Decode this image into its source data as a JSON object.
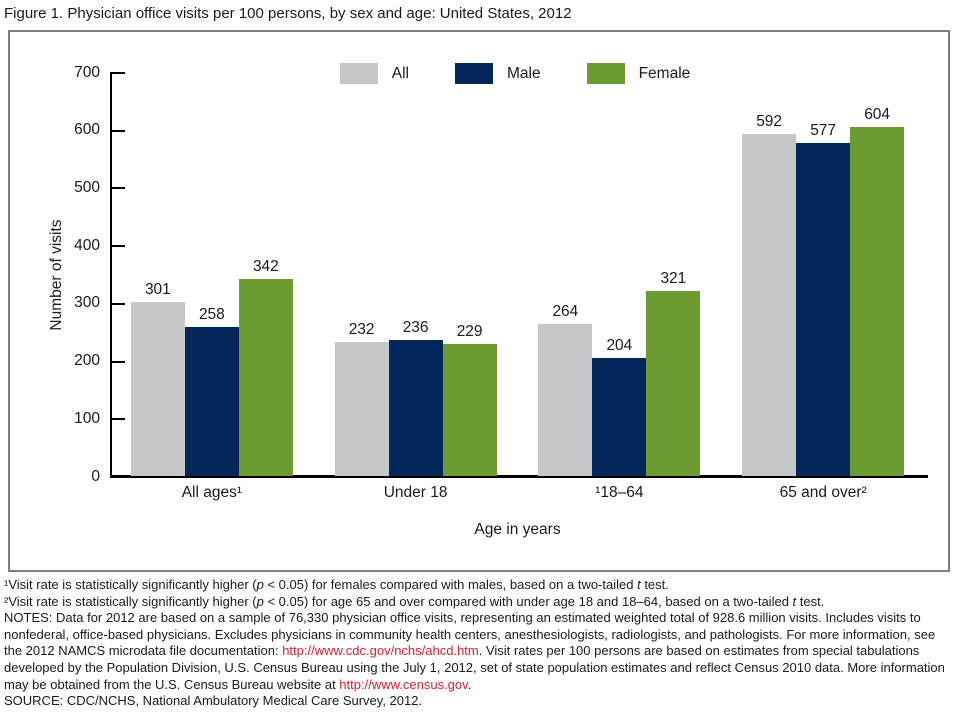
{
  "title": "Figure 1. Physician office visits per 100 persons, by sex and age: United States, 2012",
  "colors": {
    "all_bar": "#C6C7C9",
    "male_bar": "#03275A",
    "female_bar": "#6C9B31",
    "link": "#DD1E33",
    "axis": "#000000"
  },
  "chart_data": {
    "type": "bar",
    "title": "Physician office visits per 100 persons, by sex and age: United States, 2012",
    "categories": [
      "All ages¹",
      "Under 18",
      "¹18–64",
      "65 and over²"
    ],
    "series": [
      {
        "name": "All",
        "color": "#C6C7C9",
        "values": [
          301,
          232,
          264,
          592
        ]
      },
      {
        "name": "Male",
        "color": "#03275A",
        "values": [
          258,
          236,
          204,
          577
        ]
      },
      {
        "name": "Female",
        "color": "#6C9B31",
        "values": [
          342,
          229,
          321,
          604
        ]
      }
    ],
    "xlabel": "Age in years",
    "ylabel": "Number of visits",
    "ylim": [
      0,
      700
    ],
    "yticks": [
      0,
      100,
      200,
      300,
      400,
      500,
      600,
      700
    ],
    "grid": false,
    "legend_position": "top-center",
    "bar_value_labels": true
  },
  "footnotes": {
    "lines": [
      {
        "name": "footnote-1",
        "segments": [
          {
            "text": "¹Visit rate is statistically significantly higher ("
          },
          {
            "text": "p",
            "style": "italic"
          },
          {
            "text": " < 0.05) for females compared with males, based on a two-tailed "
          },
          {
            "text": "t",
            "style": "italic"
          },
          {
            "text": " test."
          }
        ]
      },
      {
        "name": "footnote-2",
        "segments": [
          {
            "text": "²Visit rate is statistically significantly higher ("
          },
          {
            "text": "p",
            "style": "italic"
          },
          {
            "text": " < 0.05) for age 65 and over compared with under age 18 and 18–64, based on a two-tailed "
          },
          {
            "text": "t",
            "style": "italic"
          },
          {
            "text": " test."
          }
        ]
      },
      {
        "name": "notes",
        "segments": [
          {
            "text": "NOTES: Data for 2012 are based on a sample of 76,330 physician office visits, representing an estimated weighted total of 928.6 million visits. Includes visits to nonfederal, office-based physicians. Excludes physicians in community health centers, anesthesiologists, radiologists, and pathologists. For more information, see the 2012 NAMCS microdata file documentation: "
          },
          {
            "text": "http://www.cdc.gov/nchs/ahcd.htm",
            "style": "link"
          },
          {
            "text": ". Visit rates per 100 persons are based on estimates from special tabulations developed by the Population Division, U.S. Census Bureau using the July 1, 2012, set of state population estimates and reflect Census 2010 data. More information may be obtained from the U.S. Census Bureau website at "
          },
          {
            "text": "http://www.census.gov",
            "style": "link"
          },
          {
            "text": "."
          }
        ]
      },
      {
        "name": "source",
        "segments": [
          {
            "text": "SOURCE: CDC/NCHS, National Ambulatory Medical Care Survey, 2012."
          }
        ]
      }
    ]
  }
}
